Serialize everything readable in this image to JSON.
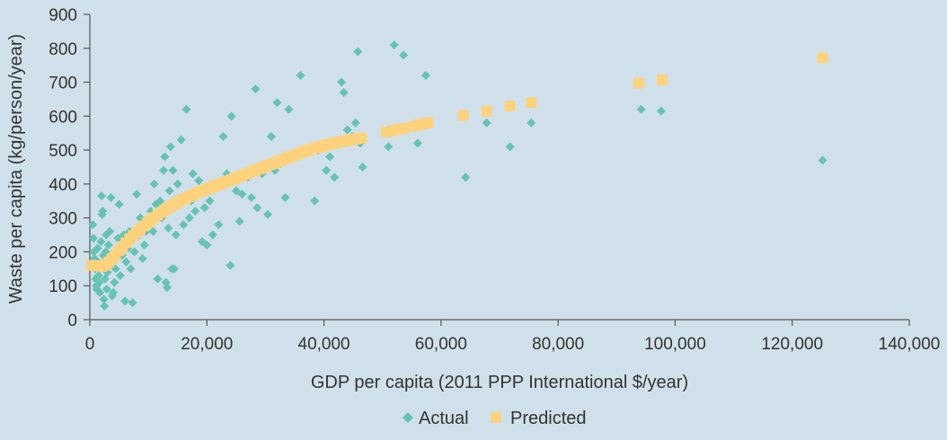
{
  "chart_data": {
    "type": "scatter",
    "title": "",
    "xlabel": "GDP per capita (2011 PPP International $/year)",
    "ylabel": "Waste per capita (kg/person/year)",
    "xlim": [
      0,
      140000
    ],
    "ylim": [
      0,
      900
    ],
    "x_ticks": [
      0,
      20000,
      40000,
      60000,
      80000,
      100000,
      120000,
      140000
    ],
    "x_tick_labels": [
      "0",
      "20,000",
      "40,000",
      "60,000",
      "80,000",
      "100,000",
      "120,000",
      "140,000"
    ],
    "y_ticks": [
      0,
      100,
      200,
      300,
      400,
      500,
      600,
      700,
      800,
      900
    ],
    "y_tick_labels": [
      "0",
      "100",
      "200",
      "300",
      "400",
      "500",
      "600",
      "700",
      "800",
      "900"
    ],
    "grid": false,
    "legend_position": "bottom-center",
    "colors": {
      "actual": "#66c2b3",
      "predicted": "#fdd27d",
      "axis": "#555555",
      "background": "#cfe0ea"
    },
    "series": [
      {
        "name": "Actual",
        "marker": "diamond",
        "points": [
          [
            500,
            280
          ],
          [
            600,
            240
          ],
          [
            700,
            200
          ],
          [
            800,
            180
          ],
          [
            900,
            150
          ],
          [
            1000,
            120
          ],
          [
            1100,
            100
          ],
          [
            1200,
            90
          ],
          [
            1300,
            210
          ],
          [
            1400,
            170
          ],
          [
            1500,
            130
          ],
          [
            1600,
            110
          ],
          [
            1700,
            80
          ],
          [
            1800,
            160
          ],
          [
            1900,
            230
          ],
          [
            2000,
            365
          ],
          [
            2100,
            310
          ],
          [
            2200,
            320
          ],
          [
            2300,
            190
          ],
          [
            2400,
            60
          ],
          [
            2500,
            40
          ],
          [
            2600,
            120
          ],
          [
            2700,
            200
          ],
          [
            2800,
            250
          ],
          [
            2900,
            90
          ],
          [
            3000,
            140
          ],
          [
            3100,
            175
          ],
          [
            3200,
            220
          ],
          [
            3400,
            260
          ],
          [
            3600,
            360
          ],
          [
            3800,
            70
          ],
          [
            4000,
            80
          ],
          [
            4200,
            110
          ],
          [
            4400,
            150
          ],
          [
            4600,
            200
          ],
          [
            4800,
            240
          ],
          [
            5000,
            340
          ],
          [
            5200,
            130
          ],
          [
            5500,
            190
          ],
          [
            5800,
            250
          ],
          [
            6000,
            55
          ],
          [
            6200,
            170
          ],
          [
            6500,
            210
          ],
          [
            6800,
            260
          ],
          [
            7000,
            150
          ],
          [
            7300,
            50
          ],
          [
            7600,
            200
          ],
          [
            8000,
            370
          ],
          [
            8300,
            250
          ],
          [
            8600,
            300
          ],
          [
            9000,
            180
          ],
          [
            9300,
            220
          ],
          [
            9600,
            260
          ],
          [
            10000,
            280
          ],
          [
            10400,
            320
          ],
          [
            10800,
            260
          ],
          [
            11000,
            400
          ],
          [
            11300,
            340
          ],
          [
            11600,
            120
          ],
          [
            12000,
            350
          ],
          [
            12300,
            300
          ],
          [
            12600,
            440
          ],
          [
            12800,
            480
          ],
          [
            13000,
            110
          ],
          [
            13200,
            95
          ],
          [
            13400,
            270
          ],
          [
            13600,
            380
          ],
          [
            13800,
            510
          ],
          [
            14000,
            150
          ],
          [
            14200,
            440
          ],
          [
            14400,
            150
          ],
          [
            14700,
            250
          ],
          [
            15000,
            400
          ],
          [
            15300,
            340
          ],
          [
            15600,
            530
          ],
          [
            16000,
            280
          ],
          [
            16500,
            620
          ],
          [
            17000,
            300
          ],
          [
            17300,
            350
          ],
          [
            17600,
            430
          ],
          [
            18000,
            320
          ],
          [
            18600,
            410
          ],
          [
            19200,
            230
          ],
          [
            19600,
            330
          ],
          [
            20000,
            220
          ],
          [
            20500,
            350
          ],
          [
            21000,
            250
          ],
          [
            22000,
            280
          ],
          [
            22800,
            540
          ],
          [
            23400,
            430
          ],
          [
            24000,
            160
          ],
          [
            24200,
            600
          ],
          [
            24600,
            420
          ],
          [
            25000,
            380
          ],
          [
            25600,
            290
          ],
          [
            26000,
            370
          ],
          [
            27000,
            420
          ],
          [
            27600,
            360
          ],
          [
            28300,
            680
          ],
          [
            28600,
            330
          ],
          [
            29400,
            430
          ],
          [
            30400,
            310
          ],
          [
            31000,
            540
          ],
          [
            31600,
            440
          ],
          [
            32000,
            640
          ],
          [
            32600,
            460
          ],
          [
            33400,
            360
          ],
          [
            34000,
            620
          ],
          [
            35000,
            490
          ],
          [
            36000,
            720
          ],
          [
            37000,
            500
          ],
          [
            38400,
            350
          ],
          [
            39000,
            500
          ],
          [
            40400,
            440
          ],
          [
            41000,
            480
          ],
          [
            41800,
            420
          ],
          [
            43000,
            700
          ],
          [
            43400,
            670
          ],
          [
            44000,
            560
          ],
          [
            44800,
            540
          ],
          [
            45400,
            580
          ],
          [
            45800,
            790
          ],
          [
            46200,
            520
          ],
          [
            46600,
            450
          ],
          [
            51000,
            510
          ],
          [
            52000,
            810
          ],
          [
            53600,
            780
          ],
          [
            56000,
            520
          ],
          [
            57400,
            720
          ],
          [
            64200,
            420
          ],
          [
            67800,
            580
          ],
          [
            71800,
            510
          ],
          [
            75400,
            580
          ],
          [
            94200,
            620
          ],
          [
            97600,
            615
          ],
          [
            125200,
            470
          ]
        ]
      },
      {
        "name": "Predicted",
        "marker": "square",
        "points": [
          [
            300,
            160
          ],
          [
            800,
            160
          ],
          [
            1400,
            158
          ],
          [
            2000,
            157
          ],
          [
            2600,
            160
          ],
          [
            3200,
            170
          ],
          [
            3800,
            180
          ],
          [
            4400,
            192
          ],
          [
            5000,
            204
          ],
          [
            5600,
            215
          ],
          [
            6200,
            227
          ],
          [
            6800,
            238
          ],
          [
            7400,
            248
          ],
          [
            8000,
            258
          ],
          [
            8600,
            267
          ],
          [
            9200,
            276
          ],
          [
            9800,
            285
          ],
          [
            10400,
            293
          ],
          [
            11000,
            301
          ],
          [
            11600,
            309
          ],
          [
            12200,
            316
          ],
          [
            12800,
            323
          ],
          [
            13400,
            330
          ],
          [
            14000,
            336
          ],
          [
            14600,
            342
          ],
          [
            15200,
            348
          ],
          [
            15800,
            353
          ],
          [
            16400,
            358
          ],
          [
            17000,
            363
          ],
          [
            17600,
            368
          ],
          [
            18200,
            373
          ],
          [
            18800,
            377
          ],
          [
            19400,
            381
          ],
          [
            20000,
            385
          ],
          [
            20600,
            389
          ],
          [
            21200,
            393
          ],
          [
            21800,
            397
          ],
          [
            22400,
            401
          ],
          [
            23000,
            405
          ],
          [
            23600,
            409
          ],
          [
            24200,
            413
          ],
          [
            24800,
            417
          ],
          [
            25400,
            421
          ],
          [
            26000,
            425
          ],
          [
            26600,
            429
          ],
          [
            27200,
            433
          ],
          [
            27800,
            437
          ],
          [
            28400,
            441
          ],
          [
            29000,
            445
          ],
          [
            29600,
            449
          ],
          [
            30200,
            453
          ],
          [
            30800,
            457
          ],
          [
            31400,
            461
          ],
          [
            32000,
            465
          ],
          [
            32600,
            469
          ],
          [
            33200,
            473
          ],
          [
            33800,
            477
          ],
          [
            34400,
            481
          ],
          [
            35000,
            485
          ],
          [
            35600,
            489
          ],
          [
            36200,
            493
          ],
          [
            36800,
            497
          ],
          [
            37400,
            500
          ],
          [
            38000,
            503
          ],
          [
            38600,
            506
          ],
          [
            39200,
            509
          ],
          [
            39800,
            512
          ],
          [
            40400,
            515
          ],
          [
            41000,
            517
          ],
          [
            41600,
            520
          ],
          [
            42200,
            522
          ],
          [
            42800,
            524
          ],
          [
            43400,
            526
          ],
          [
            44000,
            528
          ],
          [
            44600,
            530
          ],
          [
            45200,
            532
          ],
          [
            45800,
            534
          ],
          [
            46400,
            536
          ],
          [
            50600,
            553
          ],
          [
            51600,
            557
          ],
          [
            52600,
            561
          ],
          [
            53600,
            564
          ],
          [
            55400,
            570
          ],
          [
            56400,
            575
          ],
          [
            57200,
            578
          ],
          [
            57800,
            581
          ],
          [
            63800,
            602
          ],
          [
            67800,
            615
          ],
          [
            71800,
            630
          ],
          [
            75400,
            640
          ],
          [
            93800,
            697
          ],
          [
            97800,
            707
          ],
          [
            125200,
            772
          ]
        ]
      }
    ]
  }
}
